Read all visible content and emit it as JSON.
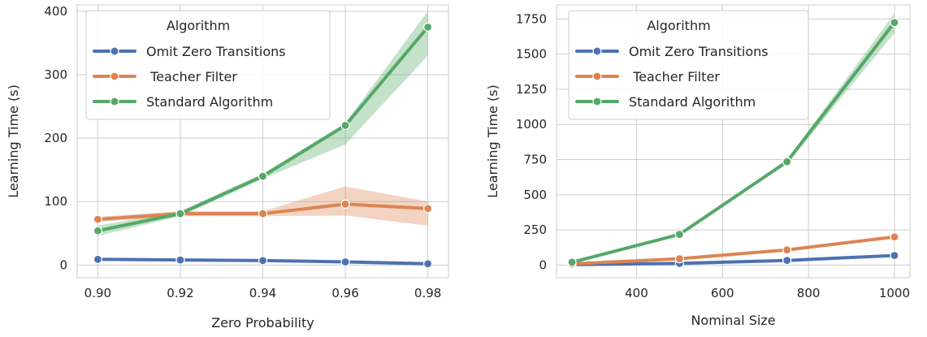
{
  "colors": {
    "Omit Zero Transitions": "#4c72b0",
    "Teacher Filter": "#dd8452",
    "Standard Algorithm": "#55a868"
  },
  "chart_data": [
    {
      "type": "line",
      "xlabel": "Zero Probability",
      "ylabel": "Learning Time (s)",
      "xlim": [
        0.895,
        0.985
      ],
      "ylim": [
        -20,
        410
      ],
      "xticks": [
        0.9,
        0.92,
        0.94,
        0.96,
        0.98
      ],
      "xtick_labels": [
        "0.90",
        "0.92",
        "0.94",
        "0.96",
        "0.98"
      ],
      "yticks": [
        0,
        100,
        200,
        300,
        400
      ],
      "ytick_labels": [
        "0",
        "100",
        "200",
        "300",
        "400"
      ],
      "grid": true,
      "legend": {
        "title": "Algorithm",
        "position": "top-left",
        "entries": [
          "Omit Zero Transitions",
          " Teacher Filter",
          "Standard Algorithm"
        ]
      },
      "x": [
        0.9,
        0.92,
        0.94,
        0.96,
        0.98
      ],
      "series": [
        {
          "name": "Omit Zero Transitions",
          "values": [
            9,
            8,
            7,
            5,
            2
          ],
          "ci_low": [
            7,
            6,
            5,
            3,
            0
          ],
          "ci_high": [
            11,
            10,
            9,
            7,
            4
          ]
        },
        {
          "name": "Teacher Filter",
          "values": [
            72,
            81,
            81,
            96,
            89
          ],
          "ci_low": [
            68,
            77,
            77,
            78,
            62
          ],
          "ci_high": [
            76,
            85,
            85,
            124,
            100
          ]
        },
        {
          "name": "Standard Algorithm",
          "values": [
            54,
            81,
            140,
            220,
            375
          ],
          "ci_low": [
            46,
            77,
            136,
            190,
            330
          ],
          "ci_high": [
            62,
            85,
            144,
            224,
            400
          ]
        }
      ]
    },
    {
      "type": "line",
      "xlabel": "Nominal Size",
      "ylabel": "Learning Time (s)",
      "xlim": [
        214,
        1036
      ],
      "ylim": [
        -90,
        1850
      ],
      "xticks": [
        400,
        600,
        800,
        1000
      ],
      "xtick_labels": [
        "400",
        "600",
        "800",
        "1000"
      ],
      "yticks": [
        0,
        250,
        500,
        750,
        1000,
        1250,
        1500,
        1750
      ],
      "ytick_labels": [
        "0",
        "250",
        "500",
        "750",
        "1000",
        "1250",
        "1500",
        "1750"
      ],
      "grid": true,
      "legend": {
        "title": "Algorithm",
        "position": "top-left",
        "entries": [
          "Omit Zero Transitions",
          " Teacher Filter",
          "Standard Algorithm"
        ]
      },
      "x": [
        250,
        500,
        750,
        1000
      ],
      "series": [
        {
          "name": "Omit Zero Transitions",
          "values": [
            3,
            12,
            33,
            68
          ],
          "ci_low": [
            1,
            9,
            28,
            60
          ],
          "ci_high": [
            5,
            15,
            38,
            76
          ]
        },
        {
          "name": "Teacher Filter",
          "values": [
            8,
            45,
            108,
            200
          ],
          "ci_low": [
            5,
            40,
            100,
            190
          ],
          "ci_high": [
            11,
            50,
            116,
            210
          ]
        },
        {
          "name": "Standard Algorithm",
          "values": [
            20,
            218,
            735,
            1725
          ],
          "ci_low": [
            15,
            210,
            720,
            1650
          ],
          "ci_high": [
            25,
            226,
            750,
            1790
          ]
        }
      ]
    }
  ]
}
